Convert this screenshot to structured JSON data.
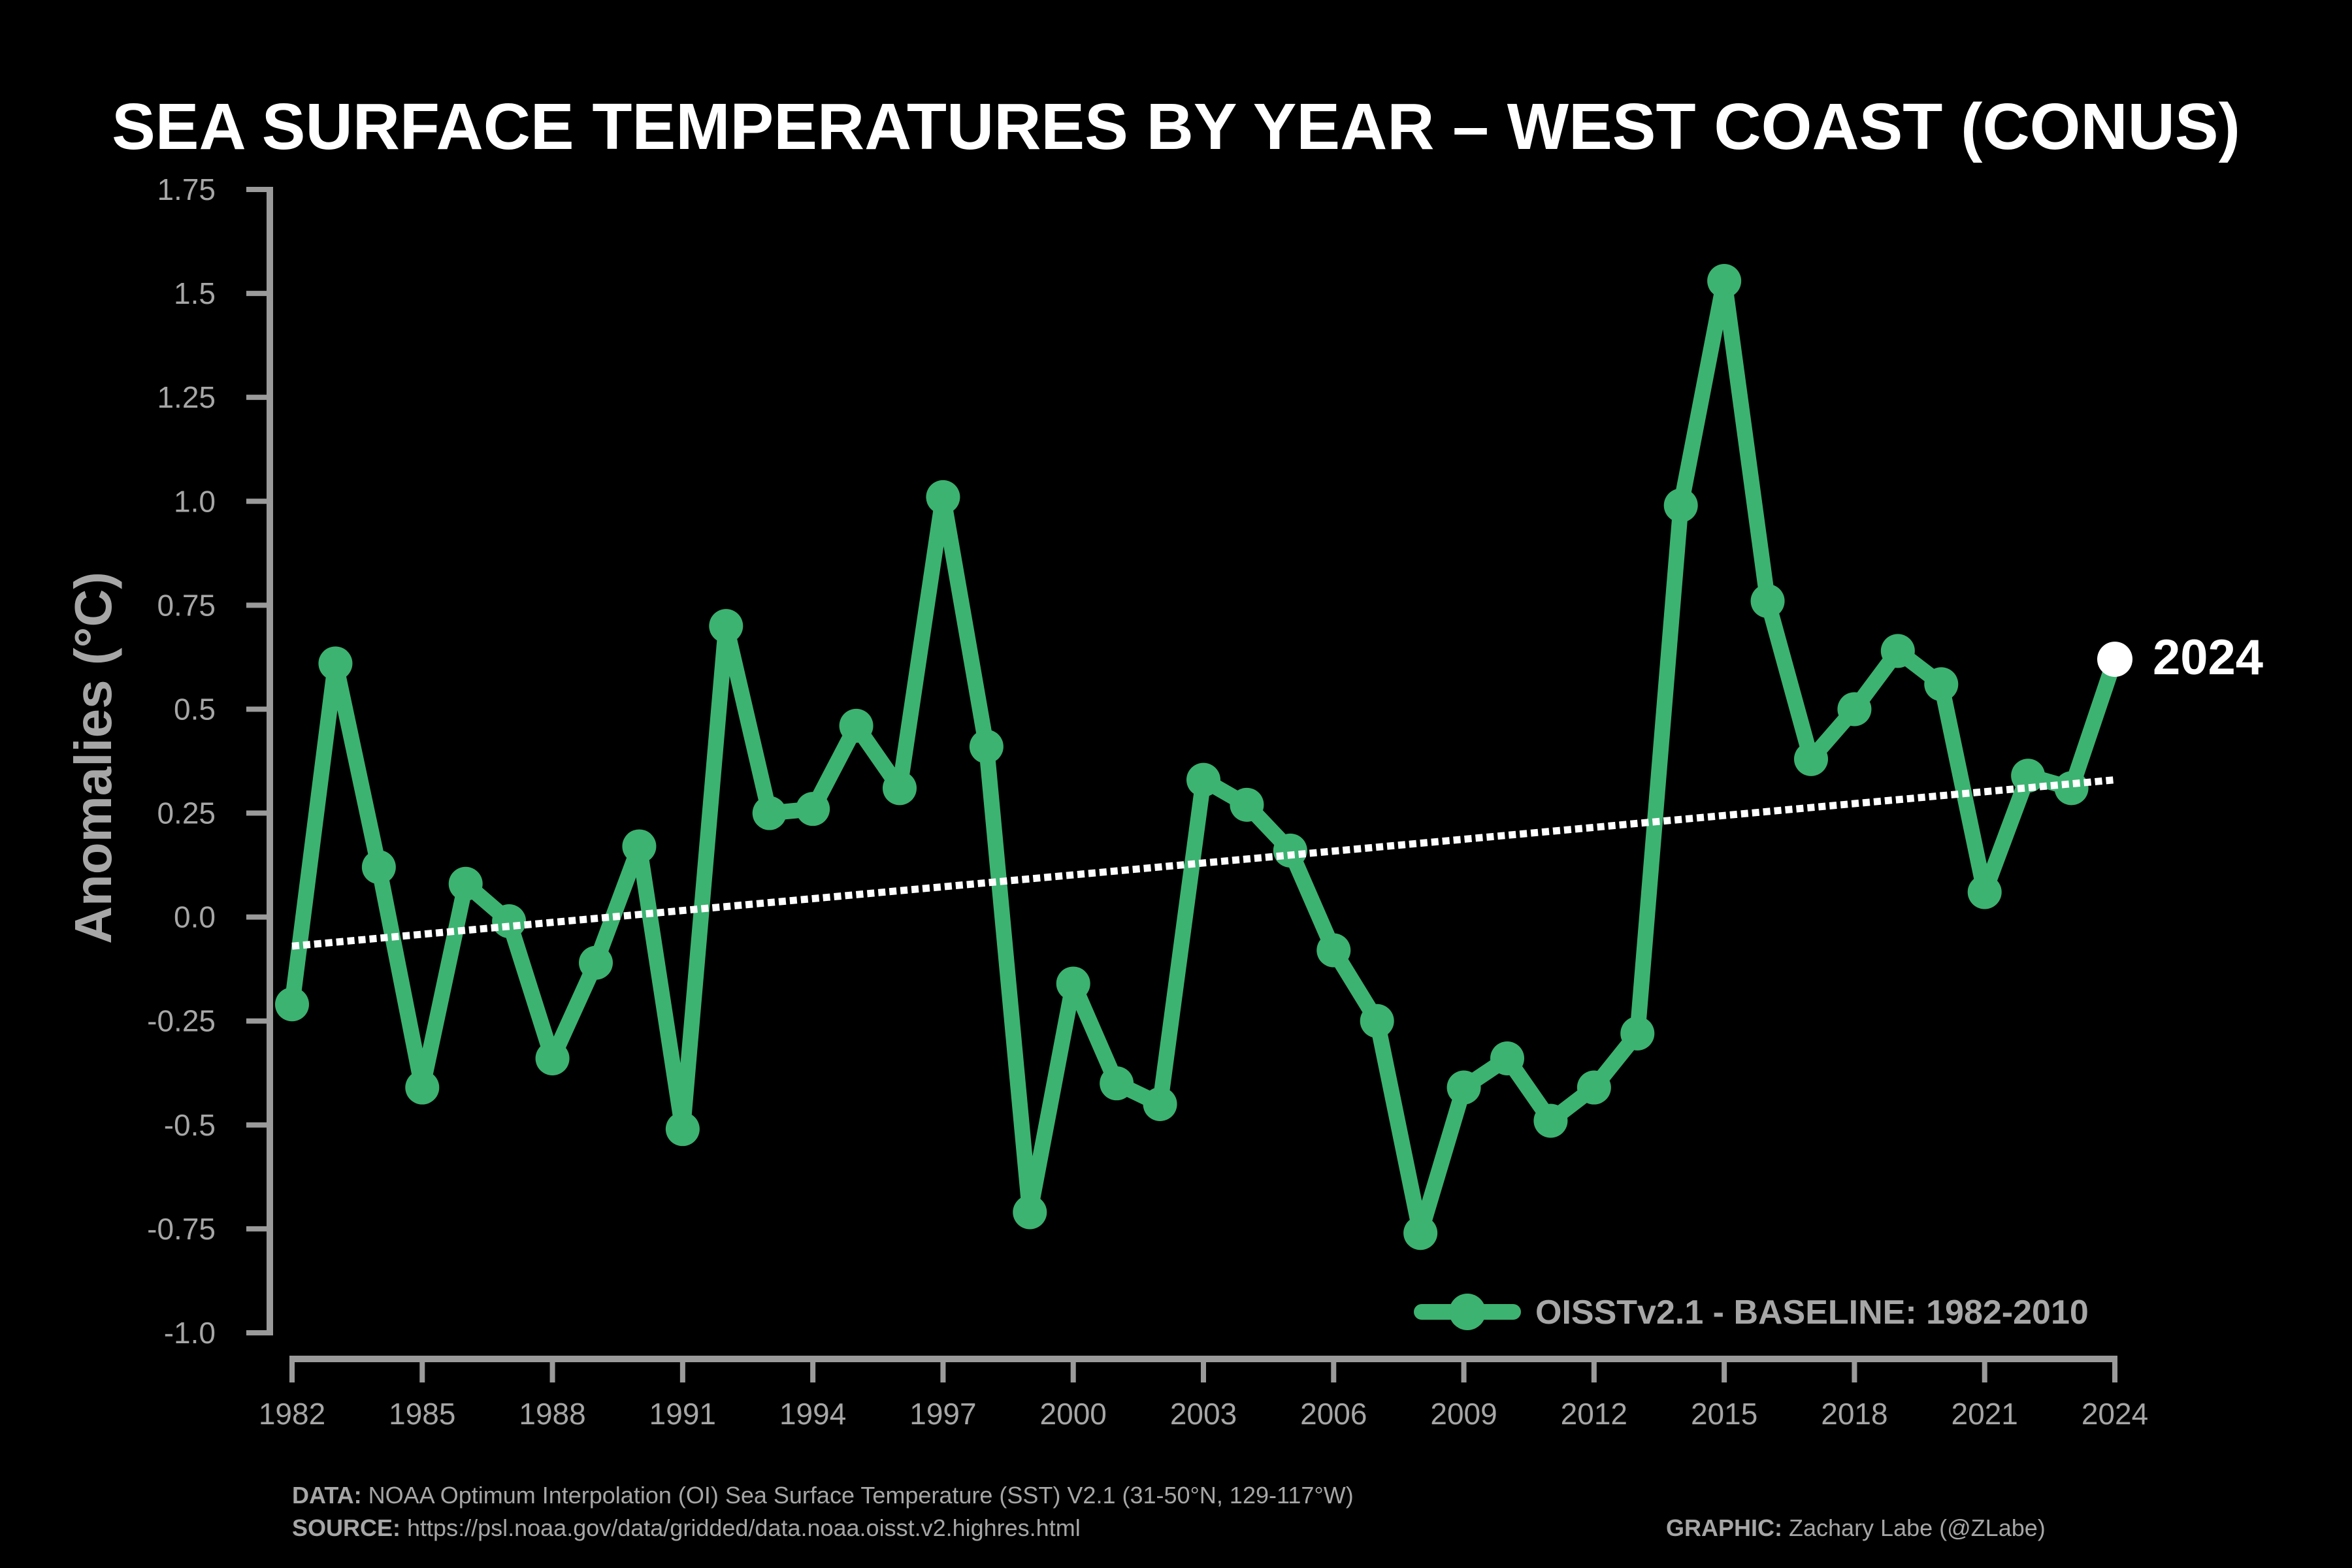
{
  "colors": {
    "background": "#000000",
    "series": "#3cb371",
    "trend": "#ffffff",
    "axis": "#9a9a9a",
    "text": "#a6a6a6",
    "title": "#ffffff"
  },
  "chart_data": {
    "type": "line",
    "title": "SEA SURFACE TEMPERATURES BY YEAR – WEST COAST (CONUS)",
    "ylabel": "Anomalies (°C)",
    "xlabel": "",
    "ylim": [
      -1.0,
      1.75
    ],
    "xlim": [
      1982,
      2024
    ],
    "yticks": [
      -1.0,
      -0.75,
      -0.5,
      -0.25,
      0.0,
      0.25,
      0.5,
      0.75,
      1.0,
      1.25,
      1.5,
      1.75
    ],
    "ytick_labels": [
      "-1.0",
      "-0.75",
      "-0.5",
      "-0.25",
      "0.0",
      "0.25",
      "0.5",
      "0.75",
      "1.0",
      "1.25",
      "1.5",
      "1.75"
    ],
    "xticks": [
      1982,
      1985,
      1988,
      1991,
      1994,
      1997,
      2000,
      2003,
      2006,
      2009,
      2012,
      2015,
      2018,
      2021,
      2024
    ],
    "xtick_labels": [
      "1982",
      "1985",
      "1988",
      "1991",
      "1994",
      "1997",
      "2000",
      "2003",
      "2006",
      "2009",
      "2012",
      "2015",
      "2018",
      "2021",
      "2024"
    ],
    "series": [
      {
        "name": "OISSTv2.1 - BASELINE: 1982-2010",
        "x": [
          1982,
          1983,
          1984,
          1985,
          1986,
          1987,
          1988,
          1989,
          1990,
          1991,
          1992,
          1993,
          1994,
          1995,
          1996,
          1997,
          1998,
          1999,
          2000,
          2001,
          2002,
          2003,
          2004,
          2005,
          2006,
          2007,
          2008,
          2009,
          2010,
          2011,
          2012,
          2013,
          2014,
          2015,
          2016,
          2017,
          2018,
          2019,
          2020,
          2021,
          2022,
          2023,
          2024
        ],
        "values": [
          -0.21,
          0.61,
          0.12,
          -0.41,
          0.08,
          -0.01,
          -0.34,
          -0.11,
          0.17,
          -0.51,
          0.7,
          0.25,
          0.26,
          0.46,
          0.31,
          1.01,
          0.41,
          -0.71,
          -0.16,
          -0.4,
          -0.45,
          0.33,
          0.27,
          0.16,
          -0.08,
          -0.25,
          -0.76,
          -0.41,
          -0.34,
          -0.49,
          -0.41,
          -0.28,
          0.99,
          1.53,
          0.76,
          0.38,
          0.5,
          0.64,
          0.56,
          0.06,
          0.34,
          0.31,
          0.62
        ]
      }
    ],
    "trend": {
      "x": [
        1982,
        2024
      ],
      "values": [
        -0.07,
        0.33
      ]
    },
    "highlight": {
      "x": 2024,
      "value": 0.62,
      "label": "2024"
    },
    "legend": {
      "label": "OISSTv2.1 - BASELINE: 1982-2010",
      "position": "bottom-right"
    }
  },
  "footer": {
    "data_label": "DATA:",
    "data_text": "NOAA Optimum Interpolation (OI) Sea Surface Temperature (SST) V2.1 (31-50°N, 129-117°W)",
    "source_label": "SOURCE:",
    "source_text": "https://psl.noaa.gov/data/gridded/data.noaa.oisst.v2.highres.html",
    "graphic_label": "GRAPHIC:",
    "graphic_text": "Zachary Labe (@ZLabe)"
  }
}
